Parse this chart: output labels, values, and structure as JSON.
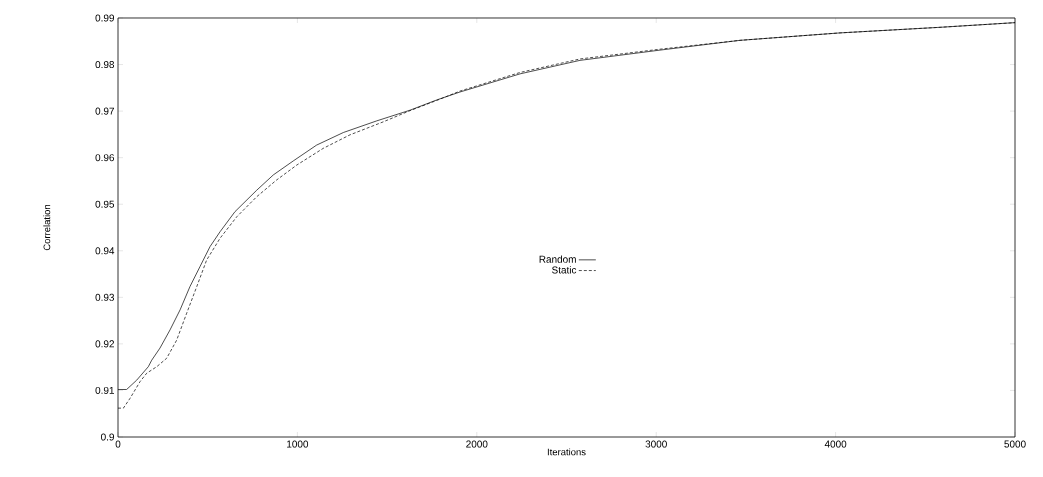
{
  "chart_data": {
    "type": "line",
    "xlabel": "Iterations",
    "ylabel": "Correlation",
    "xlim": [
      0,
      5000
    ],
    "ylim": [
      0.9,
      0.99
    ],
    "xticks": [
      0,
      1000,
      2000,
      3000,
      4000,
      5000
    ],
    "yticks": [
      0.9,
      0.91,
      0.92,
      0.93,
      0.94,
      0.95,
      0.96,
      0.97,
      0.98,
      0.99
    ],
    "legend": "center",
    "grid": false,
    "series": [
      {
        "name": "Random",
        "color": "#000000",
        "line_style": "solid",
        "x": [
          0,
          48,
          104,
          169,
          188,
          234,
          290,
          346,
          401,
          457,
          513,
          569,
          652,
          773,
          866,
          977,
          1107,
          1256,
          1442,
          1628,
          1777,
          1906,
          2241,
          2575,
          3021,
          3467,
          4025,
          4582,
          5000
        ],
        "values": [
          0.9102,
          0.9102,
          0.9122,
          0.9151,
          0.9165,
          0.9191,
          0.923,
          0.9273,
          0.9323,
          0.9366,
          0.9409,
          0.9441,
          0.9484,
          0.953,
          0.9563,
          0.9593,
          0.9627,
          0.9654,
          0.9679,
          0.9702,
          0.9724,
          0.9741,
          0.978,
          0.9809,
          0.9831,
          0.9852,
          0.9868,
          0.988,
          0.989
        ]
      },
      {
        "name": "Static",
        "color": "#000000",
        "line_style": "dashed",
        "x": [
          0,
          30,
          67,
          123,
          160,
          216,
          271,
          327,
          383,
          439,
          494,
          569,
          662,
          773,
          884,
          996,
          1144,
          1293,
          1479,
          1628,
          1777,
          1906,
          2241,
          2575,
          3021,
          3467,
          4025,
          4582,
          5000
        ],
        "values": [
          0.9062,
          0.9062,
          0.9083,
          0.9119,
          0.9137,
          0.9151,
          0.9169,
          0.9208,
          0.9266,
          0.9323,
          0.938,
          0.9427,
          0.9473,
          0.9516,
          0.9552,
          0.9584,
          0.962,
          0.9649,
          0.9677,
          0.9701,
          0.9723,
          0.9743,
          0.9783,
          0.9812,
          0.9833,
          0.9852,
          0.9868,
          0.988,
          0.989
        ]
      }
    ]
  }
}
